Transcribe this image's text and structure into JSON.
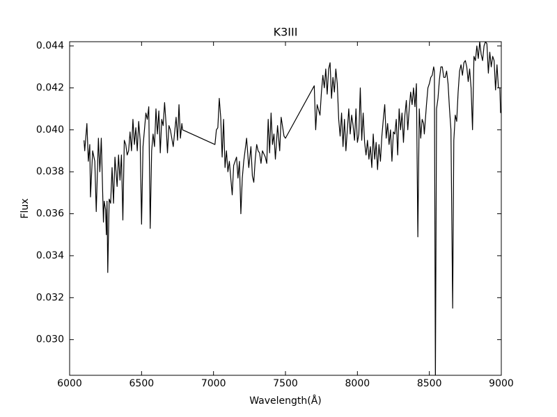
{
  "chart_data": {
    "type": "line",
    "title": "K3III",
    "x_label": "Wavelength(Å)",
    "y_label": "Flux",
    "color": "#000000",
    "xlim": [
      6000,
      9000
    ],
    "xticks": [
      6000,
      6500,
      7000,
      7500,
      8000,
      8500,
      9000
    ],
    "ylim": [
      0.0283,
      0.0442
    ],
    "yticks": [
      {
        "value": 0.03,
        "label": "0.030"
      },
      {
        "value": 0.032,
        "label": "0.032"
      },
      {
        "value": 0.034,
        "label": "0.034"
      },
      {
        "value": 0.036,
        "label": "0.036"
      },
      {
        "value": 0.038,
        "label": "0.038"
      },
      {
        "value": 0.04,
        "label": "0.040"
      },
      {
        "value": 0.042,
        "label": "0.042"
      },
      {
        "value": 0.044,
        "label": "0.044"
      }
    ],
    "x": [
      6100,
      6105,
      6120,
      6130,
      6140,
      6145,
      6160,
      6175,
      6185,
      6200,
      6210,
      6220,
      6235,
      6240,
      6250,
      6255,
      6260,
      6265,
      6275,
      6285,
      6295,
      6305,
      6315,
      6330,
      6340,
      6350,
      6360,
      6370,
      6380,
      6390,
      6400,
      6410,
      6420,
      6430,
      6440,
      6450,
      6460,
      6470,
      6480,
      6490,
      6500,
      6510,
      6520,
      6530,
      6540,
      6550,
      6560,
      6570,
      6580,
      6590,
      6600,
      6610,
      6620,
      6630,
      6640,
      6650,
      6660,
      6670,
      6680,
      6690,
      6700,
      6720,
      6740,
      6750,
      6760,
      6770,
      6780,
      6785,
      7010,
      7020,
      7030,
      7040,
      7050,
      7060,
      7070,
      7080,
      7090,
      7100,
      7110,
      7130,
      7140,
      7160,
      7170,
      7180,
      7190,
      7200,
      7210,
      7230,
      7245,
      7260,
      7270,
      7280,
      7290,
      7300,
      7310,
      7320,
      7330,
      7340,
      7360,
      7370,
      7380,
      7390,
      7400,
      7410,
      7420,
      7430,
      7445,
      7460,
      7470,
      7490,
      7500,
      7700,
      7710,
      7720,
      7740,
      7750,
      7760,
      7770,
      7780,
      7790,
      7800,
      7810,
      7820,
      7830,
      7840,
      7850,
      7860,
      7870,
      7880,
      7890,
      7900,
      7910,
      7920,
      7930,
      7940,
      7950,
      7960,
      7970,
      7980,
      7990,
      8000,
      8010,
      8020,
      8030,
      8040,
      8050,
      8060,
      8070,
      8080,
      8090,
      8100,
      8110,
      8120,
      8130,
      8140,
      8150,
      8160,
      8170,
      8180,
      8190,
      8200,
      8210,
      8220,
      8230,
      8240,
      8250,
      8260,
      8270,
      8280,
      8290,
      8300,
      8310,
      8320,
      8330,
      8340,
      8350,
      8360,
      8370,
      8380,
      8390,
      8400,
      8410,
      8420,
      8430,
      8440,
      8450,
      8460,
      8465,
      8480,
      8490,
      8500,
      8510,
      8520,
      8530,
      8535,
      8542,
      8550,
      8560,
      8570,
      8580,
      8590,
      8600,
      8610,
      8620,
      8630,
      8640,
      8650,
      8662,
      8670,
      8680,
      8690,
      8700,
      8710,
      8720,
      8730,
      8740,
      8750,
      8760,
      8770,
      8780,
      8790,
      8800,
      8810,
      8820,
      8830,
      8840,
      8850,
      8860,
      8870,
      8880,
      8890,
      8900,
      8910,
      8920,
      8930,
      8940,
      8950,
      8960,
      8970,
      8980,
      8990,
      8995
    ],
    "values": [
      0.0395,
      0.039,
      0.0403,
      0.0385,
      0.0393,
      0.0368,
      0.039,
      0.0385,
      0.0361,
      0.0396,
      0.038,
      0.0396,
      0.0356,
      0.0366,
      0.0362,
      0.035,
      0.0366,
      0.0332,
      0.0367,
      0.0365,
      0.0382,
      0.0365,
      0.0387,
      0.0373,
      0.0388,
      0.0376,
      0.0388,
      0.0357,
      0.0395,
      0.0393,
      0.0388,
      0.039,
      0.0399,
      0.039,
      0.0405,
      0.0393,
      0.0401,
      0.039,
      0.0404,
      0.0395,
      0.0355,
      0.0392,
      0.04,
      0.0408,
      0.0405,
      0.0411,
      0.0353,
      0.039,
      0.0398,
      0.0392,
      0.041,
      0.0398,
      0.0409,
      0.0389,
      0.0405,
      0.0402,
      0.0413,
      0.0403,
      0.0389,
      0.0402,
      0.04,
      0.0392,
      0.0406,
      0.0395,
      0.0412,
      0.0396,
      0.0403,
      0.04,
      0.0393,
      0.04,
      0.0401,
      0.0415,
      0.0406,
      0.0387,
      0.0405,
      0.0382,
      0.039,
      0.038,
      0.0385,
      0.0369,
      0.0383,
      0.0387,
      0.0377,
      0.0385,
      0.036,
      0.0377,
      0.0385,
      0.0396,
      0.0382,
      0.0392,
      0.0378,
      0.0375,
      0.0386,
      0.0393,
      0.039,
      0.0389,
      0.0384,
      0.039,
      0.0387,
      0.0384,
      0.0405,
      0.0389,
      0.0408,
      0.0393,
      0.0398,
      0.0386,
      0.0402,
      0.039,
      0.0406,
      0.0397,
      0.0396,
      0.0421,
      0.04,
      0.0412,
      0.0407,
      0.0418,
      0.0426,
      0.042,
      0.0429,
      0.0417,
      0.0429,
      0.0432,
      0.0415,
      0.0425,
      0.0418,
      0.0429,
      0.0422,
      0.0405,
      0.0397,
      0.0408,
      0.0392,
      0.0405,
      0.039,
      0.04,
      0.041,
      0.0398,
      0.0407,
      0.0402,
      0.0395,
      0.041,
      0.0394,
      0.0398,
      0.042,
      0.0395,
      0.0408,
      0.0394,
      0.0388,
      0.0395,
      0.0386,
      0.0392,
      0.0382,
      0.0398,
      0.0386,
      0.0394,
      0.0381,
      0.0393,
      0.0385,
      0.0397,
      0.0405,
      0.0412,
      0.0396,
      0.0403,
      0.0393,
      0.04,
      0.0385,
      0.0399,
      0.0398,
      0.0405,
      0.0388,
      0.041,
      0.04,
      0.0408,
      0.0394,
      0.0407,
      0.0414,
      0.04,
      0.041,
      0.0418,
      0.0412,
      0.042,
      0.0411,
      0.0422,
      0.0349,
      0.041,
      0.0396,
      0.0405,
      0.0403,
      0.0398,
      0.0412,
      0.042,
      0.0422,
      0.0425,
      0.0426,
      0.043,
      0.0428,
      0.028,
      0.041,
      0.0415,
      0.0424,
      0.043,
      0.043,
      0.0425,
      0.0425,
      0.0428,
      0.0422,
      0.041,
      0.04,
      0.0315,
      0.0395,
      0.0407,
      0.0404,
      0.0418,
      0.0428,
      0.0431,
      0.0426,
      0.0432,
      0.0433,
      0.043,
      0.0423,
      0.0429,
      0.042,
      0.04,
      0.0435,
      0.0433,
      0.044,
      0.0434,
      0.0442,
      0.0436,
      0.0433,
      0.044,
      0.0442,
      0.0441,
      0.0427,
      0.0437,
      0.043,
      0.0435,
      0.0433,
      0.0419,
      0.0431,
      0.042,
      0.042,
      0.0408
    ]
  }
}
